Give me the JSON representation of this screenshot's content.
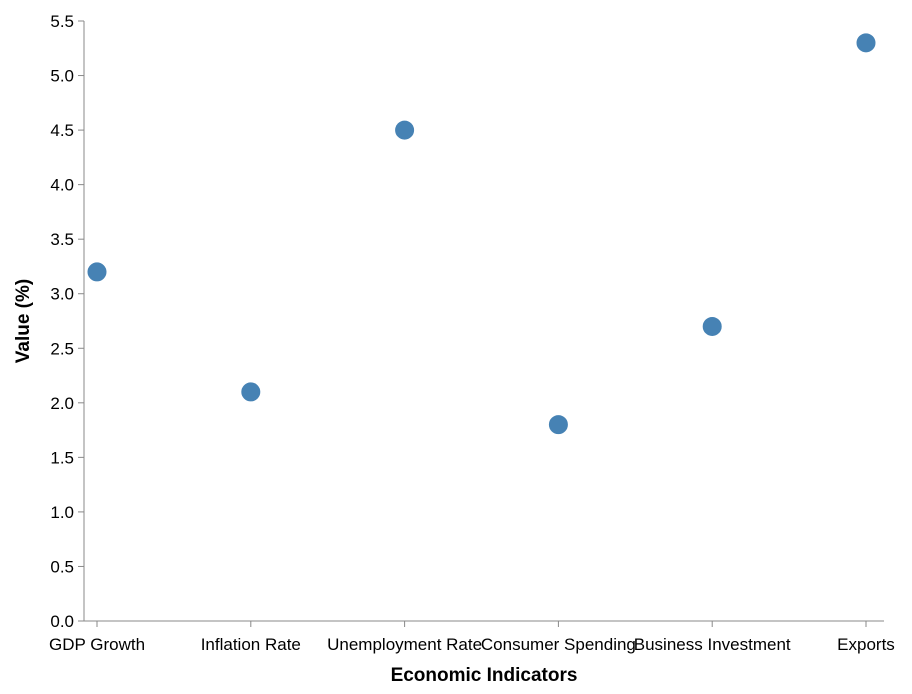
{
  "chart_data": {
    "type": "scatter",
    "categories": [
      "GDP Growth",
      "Inflation Rate",
      "Unemployment Rate",
      "Consumer Spending",
      "Business Investment",
      "Exports"
    ],
    "values": [
      3.2,
      2.1,
      4.5,
      1.8,
      2.7,
      5.3
    ],
    "xlabel": "Economic Indicators",
    "ylabel": "Value (%)",
    "ylim": [
      0,
      5.5
    ],
    "yticks": [
      "0.0",
      "0.5",
      "1.0",
      "1.5",
      "2.0",
      "2.5",
      "3.0",
      "3.5",
      "4.0",
      "4.5",
      "5.0",
      "5.5"
    ],
    "grid": false,
    "point_color": "#4682b4"
  }
}
